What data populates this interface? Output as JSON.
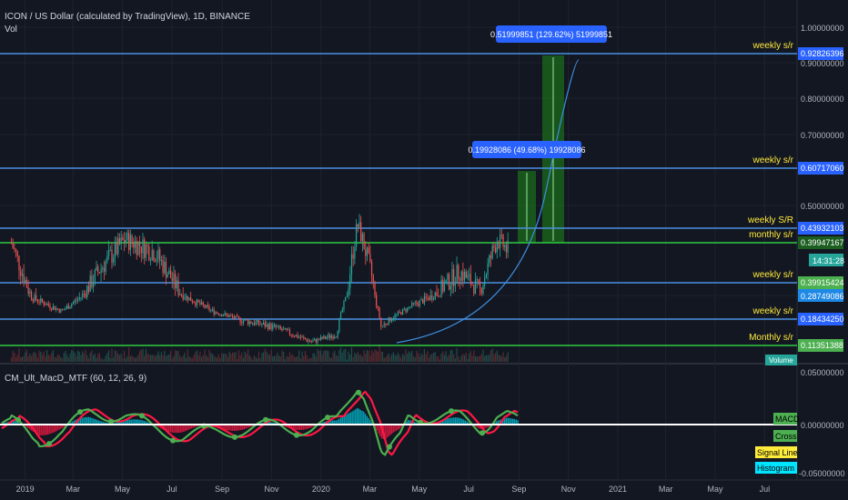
{
  "header": {
    "symbol": "ICON / US Dollar (calculated by TradingView), 1D, BINANCE",
    "vol_label": "Vol"
  },
  "price_axis": {
    "ticks": [
      "1.00000000",
      "0.90000000",
      "0.80000000",
      "0.70000000",
      "0.50000000"
    ]
  },
  "time_axis": {
    "labels": [
      "2019",
      "Mar",
      "May",
      "Jul",
      "Sep",
      "Nov",
      "2020",
      "Mar",
      "May",
      "Jul",
      "Sep",
      "Nov",
      "2021",
      "Mar",
      "May",
      "Jul"
    ]
  },
  "levels": [
    {
      "label": "weekly s/r",
      "price_tag": "0.92826396",
      "color": "#4a90e2",
      "tag_color": "#2962ff"
    },
    {
      "label": "weekly s/r",
      "price_tag": "0.60717060",
      "color": "#4a90e2",
      "tag_color": "#2962ff"
    },
    {
      "label": "weekly S/R",
      "price_tag": "0.43932103",
      "color": "#4a90e2",
      "tag_color": "#2962ff"
    },
    {
      "label": "monthly s/r",
      "price_tag": "0.39947167",
      "color": "#2ecc40",
      "tag_color": "#1b5e20"
    },
    {
      "label": "weekly s/r",
      "price_tag": "0.39915424",
      "color": "#4a90e2",
      "tag_color": "#4caf50"
    },
    {
      "label": "weekly s/r",
      "price_tag": "0.18434250",
      "color": "#4a90e2",
      "tag_color": "#2962ff"
    },
    {
      "label": "Monthly s/r",
      "price_tag": "0.11351388",
      "color": "#2ecc40",
      "tag_color": "#4caf50"
    }
  ],
  "last_price": {
    "value": "0.28749086",
    "countdown": "14:31:28"
  },
  "volume_label": "Volume",
  "measures": [
    {
      "label": "0.51999851 (129.62%) 51999851"
    },
    {
      "label": "0.19928086 (49.68%) 19928086"
    }
  ],
  "indicator": {
    "title": "CM_Ult_MacD_MTF (60, 12, 26, 9)",
    "axis_ticks": [
      "0.05000000",
      "0.00000000",
      "-0.05000000"
    ],
    "legend": [
      {
        "label": "MACD",
        "color": "#4caf50"
      },
      {
        "label": "Cross",
        "color": "#4caf50"
      },
      {
        "label": "Signal Line",
        "color": "#ffeb3b"
      },
      {
        "label": "Histogram",
        "color": "#00e5ff"
      }
    ]
  },
  "chart_data": {
    "type": "candlestick",
    "x_range": [
      "2018-12",
      "2021-08"
    ],
    "trend_curve": "parabolic support from 2020-04 (~0.12) rising to ~0.93 around 2020-10",
    "approx_closes": [
      {
        "date": "2018-12-15",
        "value": 0.4
      },
      {
        "date": "2019-01-10",
        "value": 0.28
      },
      {
        "date": "2019-02-15",
        "value": 0.22
      },
      {
        "date": "2019-04-01",
        "value": 0.34
      },
      {
        "date": "2019-05-05",
        "value": 0.41
      },
      {
        "date": "2019-06-10",
        "value": 0.38
      },
      {
        "date": "2019-07-10",
        "value": 0.3
      },
      {
        "date": "2019-08-20",
        "value": 0.22
      },
      {
        "date": "2019-09-25",
        "value": 0.18
      },
      {
        "date": "2019-11-05",
        "value": 0.16
      },
      {
        "date": "2019-12-20",
        "value": 0.12
      },
      {
        "date": "2020-01-20",
        "value": 0.14
      },
      {
        "date": "2020-02-15",
        "value": 0.45
      },
      {
        "date": "2020-03-05",
        "value": 0.32
      },
      {
        "date": "2020-03-15",
        "value": 0.16
      },
      {
        "date": "2020-04-20",
        "value": 0.24
      },
      {
        "date": "2020-05-25",
        "value": 0.3
      },
      {
        "date": "2020-06-20",
        "value": 0.34
      },
      {
        "date": "2020-07-15",
        "value": 0.3
      },
      {
        "date": "2020-08-05",
        "value": 0.41
      },
      {
        "date": "2020-08-20",
        "value": 0.38
      }
    ]
  }
}
